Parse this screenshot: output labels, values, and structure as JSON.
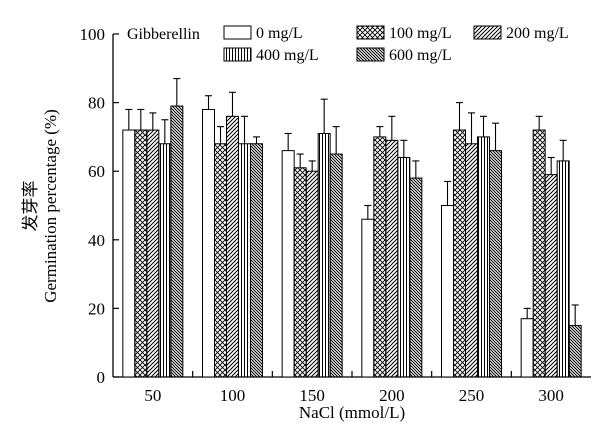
{
  "chart_data": {
    "type": "bar",
    "xlabel": "NaCl (mmol/L)",
    "ylabel": "Germination percentage (%)",
    "ylabel_cn": "发芽率",
    "legend_title": "Gibberellin",
    "ylim": [
      0,
      100
    ],
    "yticks": [
      0,
      20,
      40,
      60,
      80,
      100
    ],
    "grid": false,
    "legend_position": "top",
    "categories": [
      "50",
      "100",
      "150",
      "200",
      "250",
      "300"
    ],
    "series": [
      {
        "name": "0 mg/L",
        "pattern": "blank",
        "values": [
          72,
          78,
          66,
          46,
          50,
          17
        ],
        "errors": [
          6,
          4,
          5,
          4,
          7,
          3
        ]
      },
      {
        "name": "100 mg/L",
        "pattern": "crosshatch",
        "values": [
          72,
          68,
          61,
          70,
          72,
          72
        ],
        "errors": [
          6,
          5,
          4,
          3,
          8,
          4
        ]
      },
      {
        "name": "200 mg/L",
        "pattern": "diagonal",
        "values": [
          72,
          76,
          60,
          69,
          68,
          59
        ],
        "errors": [
          5,
          7,
          3,
          7,
          9,
          5
        ]
      },
      {
        "name": "400 mg/L",
        "pattern": "vertical",
        "values": [
          68,
          68,
          71,
          64,
          70,
          63
        ],
        "errors": [
          7,
          8,
          10,
          5,
          6,
          6
        ]
      },
      {
        "name": "600 mg/L",
        "pattern": "diagonal-dense",
        "values": [
          79,
          68,
          65,
          58,
          66,
          15
        ],
        "errors": [
          8,
          2,
          8,
          5,
          8,
          6
        ]
      }
    ]
  }
}
